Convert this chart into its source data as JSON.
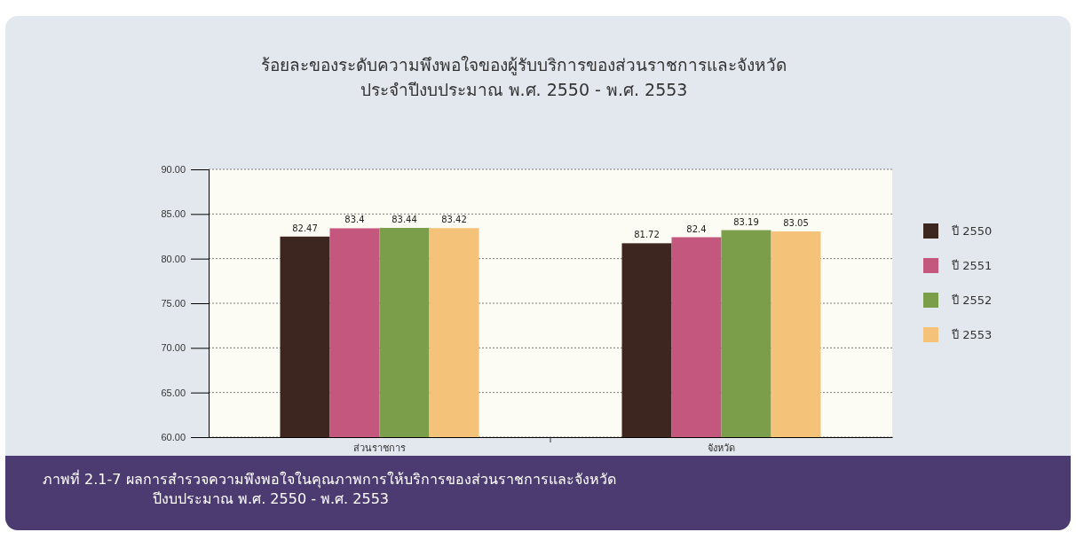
{
  "chart_data": {
    "type": "bar",
    "title": "ร้อยละของระดับความพึงพอใจของผู้รับบริการของส่วนราชการและจังหวัด",
    "subtitle": "ประจำปีงบประมาณ พ.ศ. 2550 - พ.ศ. 2553",
    "annotations": [
      "ภาพที่ 2.1-7  ผลการสำรวจความพึงพอใจในคุณภาพการให้บริการของส่วนราชการและจังหวัด\nปีงบประมาณ พ.ศ. 2550 - พ.ศ. 2553"
    ],
    "categories": [
      "ส่วนราชการ",
      "จังหวัด"
    ],
    "series": [
      {
        "name": "ปี 2550",
        "color": "#3d2620",
        "values": [
          82.47,
          81.72
        ]
      },
      {
        "name": "ปี 2551",
        "color": "#c4577e",
        "values": [
          83.4,
          82.4
        ]
      },
      {
        "name": "ปี 2552",
        "color": "#7a9e4a",
        "values": [
          83.44,
          83.19
        ]
      },
      {
        "name": "ปี 2553",
        "color": "#f5c27a",
        "values": [
          83.42,
          83.05
        ]
      }
    ],
    "ylim": [
      60,
      90
    ],
    "yticks": [
      {
        "value": 60,
        "label": "60.00"
      },
      {
        "value": 65,
        "label": "65.00"
      },
      {
        "value": 70,
        "label": "70.00"
      },
      {
        "value": 75,
        "label": "75.00"
      },
      {
        "value": 80,
        "label": "80.00"
      },
      {
        "value": 85,
        "label": "85.00"
      },
      {
        "value": 90,
        "label": "90.00"
      }
    ],
    "grid": "y",
    "legend": "right",
    "data_labels": true
  }
}
